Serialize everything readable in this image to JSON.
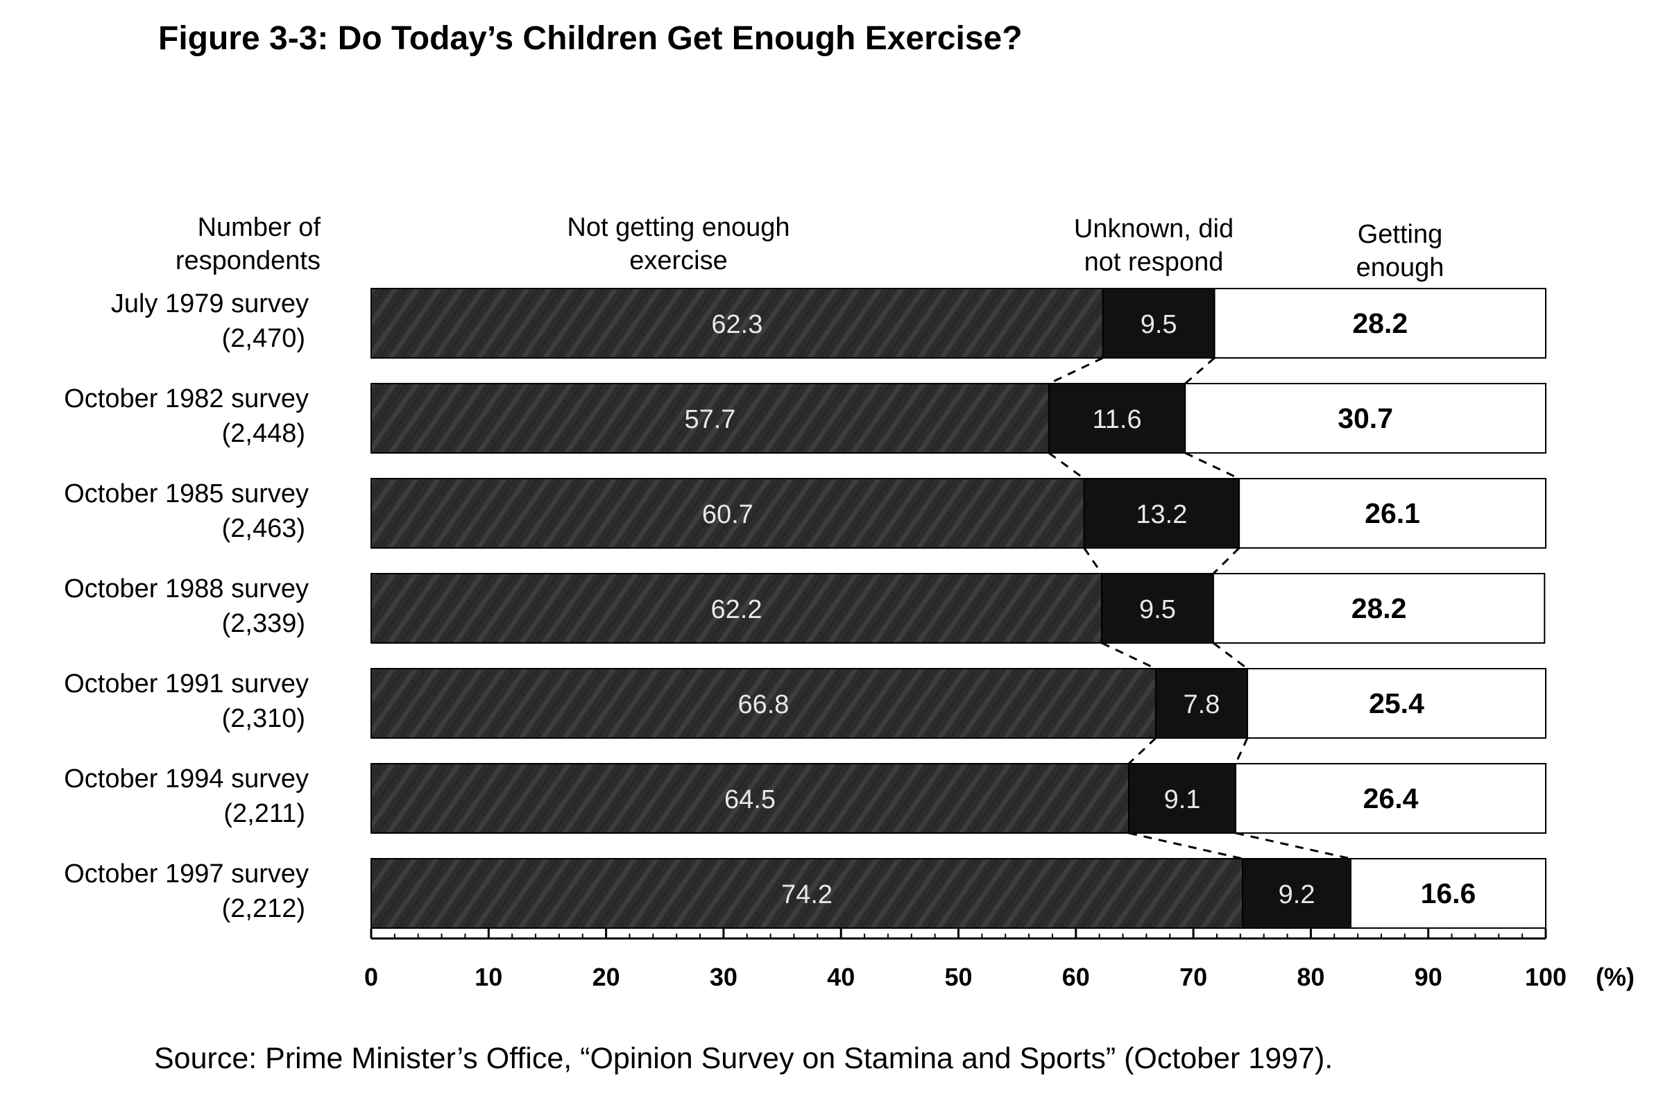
{
  "title": "Figure 3-3: Do Today’s Children Get Enough Exercise?",
  "source": "Source: Prime Minister’s Office, “Opinion Survey on Stamina and Sports” (October 1997).",
  "chart_data": {
    "type": "bar",
    "orientation": "horizontal",
    "stacked": true,
    "row_header": [
      "Number of",
      "respondents"
    ],
    "categories": [
      {
        "label": "July 1979 survey",
        "respondents": "(2,470)"
      },
      {
        "label": "October 1982 survey",
        "respondents": "(2,448)"
      },
      {
        "label": "October 1985 survey",
        "respondents": "(2,463)"
      },
      {
        "label": "October 1988 survey",
        "respondents": "(2,339)"
      },
      {
        "label": "October 1991 survey",
        "respondents": "(2,310)"
      },
      {
        "label": "October 1994 survey",
        "respondents": "(2,211)"
      },
      {
        "label": "October 1997 survey",
        "respondents": "(2,212)"
      }
    ],
    "series": [
      {
        "name": "Not getting enough exercise",
        "header": [
          "Not getting enough",
          "exercise"
        ],
        "color": "#2e2e2e",
        "values": [
          62.3,
          57.7,
          60.7,
          62.2,
          66.8,
          64.5,
          74.2
        ]
      },
      {
        "name": "Unknown, did not respond",
        "header": [
          "Unknown, did",
          "not respond"
        ],
        "color": "#111111",
        "values": [
          9.5,
          11.6,
          13.2,
          9.5,
          7.8,
          9.1,
          9.2
        ]
      },
      {
        "name": "Getting enough",
        "header": [
          "Getting",
          "enough"
        ],
        "color": "#ffffff",
        "values": [
          28.2,
          30.7,
          26.1,
          28.2,
          25.4,
          26.4,
          16.6
        ]
      }
    ],
    "xlim": [
      0,
      100
    ],
    "xticks": [
      0,
      10,
      20,
      30,
      40,
      50,
      60,
      70,
      80,
      90,
      100
    ],
    "xunit": "(%)",
    "connector_lines": "dashed"
  }
}
